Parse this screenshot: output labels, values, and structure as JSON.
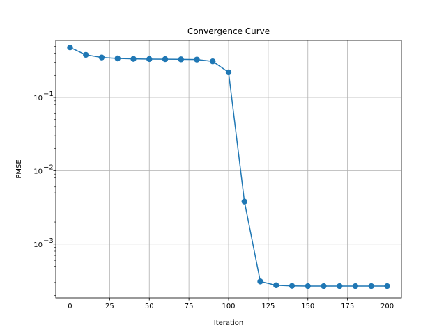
{
  "chart_data": {
    "type": "line",
    "title": "Convergence Curve",
    "xlabel": "Iteration",
    "ylabel": "PMSE",
    "yscale": "log",
    "grid": true,
    "xlim": [
      -9,
      209
    ],
    "ylim": [
      0.000185,
      0.6
    ],
    "x_ticks": [
      0,
      25,
      50,
      75,
      100,
      125,
      150,
      175,
      200
    ],
    "y_ticks": [
      {
        "value": 0.001,
        "base": "10",
        "exp": "−3"
      },
      {
        "value": 0.01,
        "base": "10",
        "exp": "−2"
      },
      {
        "value": 0.1,
        "base": "10",
        "exp": "−1"
      }
    ],
    "marker": "circle",
    "color": "#1f77b4",
    "series": [
      {
        "x": [
          0,
          10,
          20,
          30,
          40,
          50,
          60,
          70,
          80,
          90,
          100,
          110,
          120,
          130,
          140,
          150,
          160,
          170,
          180,
          190,
          200
        ],
        "y": [
          0.48,
          0.38,
          0.35,
          0.34,
          0.335,
          0.333,
          0.332,
          0.33,
          0.328,
          0.31,
          0.22,
          0.0038,
          0.00031,
          0.000275,
          0.00027,
          0.000268,
          0.000268,
          0.000268,
          0.000268,
          0.000268,
          0.000268
        ]
      }
    ]
  }
}
